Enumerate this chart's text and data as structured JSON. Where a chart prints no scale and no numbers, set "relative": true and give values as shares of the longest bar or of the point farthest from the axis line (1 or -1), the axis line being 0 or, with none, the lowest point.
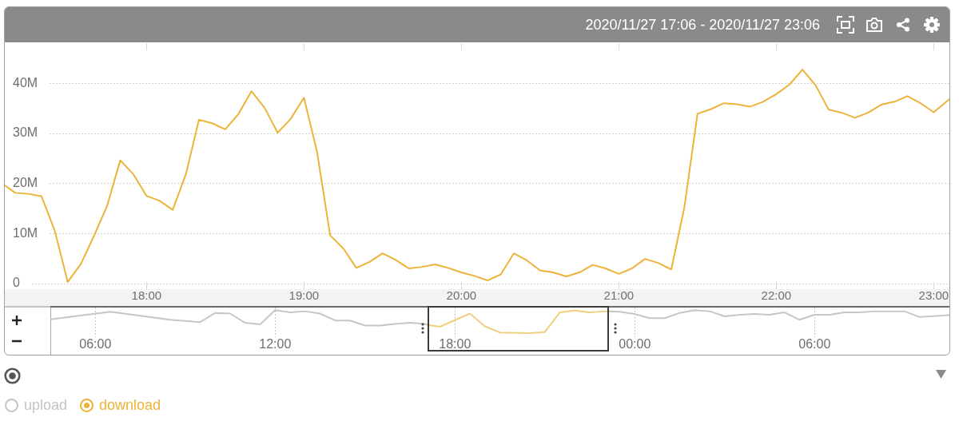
{
  "chart_data": [
    {
      "type": "line",
      "subtitle": "2020/11/27 17:06 - 2020/11/27 23:06",
      "xlim": [
        "2020-11-27T17:06",
        "2020-11-27T23:06"
      ],
      "xticks": [
        {
          "value": "2020-11-27T18:00",
          "label": "18:00"
        },
        {
          "value": "2020-11-27T19:00",
          "label": "19:00"
        },
        {
          "value": "2020-11-27T20:00",
          "label": "20:00"
        },
        {
          "value": "2020-11-27T21:00",
          "label": "21:00"
        },
        {
          "value": "2020-11-27T22:00",
          "label": "22:00"
        },
        {
          "value": "2020-11-27T23:00",
          "label": "23:00"
        }
      ],
      "ylim": [
        -4.5,
        48
      ],
      "yticks": [
        0,
        {
          "value": 10,
          "label": "10M"
        },
        {
          "value": 20,
          "label": "20M"
        },
        {
          "value": 30,
          "label": "30M"
        },
        {
          "value": 40,
          "label": "40M"
        }
      ],
      "grid": "y",
      "legend": "bottom left",
      "x": [
        "2020-11-27T17:06",
        "2020-11-27T17:10",
        "2020-11-27T17:15",
        "2020-11-27T17:20",
        "2020-11-27T17:25",
        "2020-11-27T17:30",
        "2020-11-27T17:35",
        "2020-11-27T17:40",
        "2020-11-27T17:45",
        "2020-11-27T17:50",
        "2020-11-27T17:55",
        "2020-11-27T18:00",
        "2020-11-27T18:05",
        "2020-11-27T18:10",
        "2020-11-27T18:15",
        "2020-11-27T18:20",
        "2020-11-27T18:25",
        "2020-11-27T18:30",
        "2020-11-27T18:35",
        "2020-11-27T18:40",
        "2020-11-27T18:45",
        "2020-11-27T18:50",
        "2020-11-27T18:55",
        "2020-11-27T19:00",
        "2020-11-27T19:05",
        "2020-11-27T19:10",
        "2020-11-27T19:15",
        "2020-11-27T19:20",
        "2020-11-27T19:25",
        "2020-11-27T19:30",
        "2020-11-27T19:35",
        "2020-11-27T19:40",
        "2020-11-27T19:45",
        "2020-11-27T19:50",
        "2020-11-27T19:55",
        "2020-11-27T20:00",
        "2020-11-27T20:05",
        "2020-11-27T20:10",
        "2020-11-27T20:15",
        "2020-11-27T20:20",
        "2020-11-27T20:25",
        "2020-11-27T20:30",
        "2020-11-27T20:35",
        "2020-11-27T20:40",
        "2020-11-27T20:45",
        "2020-11-27T20:50",
        "2020-11-27T20:55",
        "2020-11-27T21:00",
        "2020-11-27T21:05",
        "2020-11-27T21:10",
        "2020-11-27T21:15",
        "2020-11-27T21:20",
        "2020-11-27T21:25",
        "2020-11-27T21:30",
        "2020-11-27T21:35",
        "2020-11-27T21:40",
        "2020-11-27T21:45",
        "2020-11-27T21:50",
        "2020-11-27T21:55",
        "2020-11-27T22:00",
        "2020-11-27T22:05",
        "2020-11-27T22:10",
        "2020-11-27T22:15",
        "2020-11-27T22:20",
        "2020-11-27T22:25",
        "2020-11-27T22:30",
        "2020-11-27T22:35",
        "2020-11-27T22:40",
        "2020-11-27T22:45",
        "2020-11-27T22:50",
        "2020-11-27T22:55",
        "2020-11-27T23:00",
        "2020-11-27T23:06"
      ],
      "series": [
        {
          "name": "upload",
          "color": "#c4c4c4",
          "values": [
            null,
            null,
            null,
            null,
            null,
            null,
            null,
            null,
            null,
            null,
            null,
            null,
            null,
            null,
            null,
            null,
            null,
            null,
            null,
            null,
            null,
            null,
            null,
            null,
            null,
            null,
            null,
            null,
            null,
            null,
            null,
            null,
            null,
            null,
            null,
            null,
            null,
            null,
            null,
            null,
            null,
            null,
            null,
            null,
            null,
            null,
            null,
            null,
            null,
            null,
            null,
            null,
            null,
            null,
            null,
            null,
            null,
            null,
            null,
            null,
            null,
            null,
            null,
            null,
            null,
            null,
            null,
            null,
            null,
            null,
            null,
            null,
            null
          ]
        },
        {
          "name": "download",
          "color": "#ecb339",
          "values": [
            19.6,
            18.1,
            17.9,
            17.4,
            10.6,
            0.3,
            3.9,
            9.5,
            15.5,
            24.6,
            21.8,
            17.5,
            16.5,
            14.7,
            21.8,
            32.7,
            32.0,
            30.8,
            33.8,
            38.4,
            35.1,
            30.1,
            32.9,
            37.1,
            26.3,
            9.6,
            7.0,
            3.1,
            4.3,
            6.0,
            4.7,
            3.0,
            3.3,
            3.8,
            3.1,
            2.2,
            1.5,
            0.6,
            1.8,
            6.0,
            4.6,
            2.6,
            2.2,
            1.4,
            2.2,
            3.7,
            3.0,
            1.9,
            3.0,
            4.9,
            4.1,
            2.8,
            15.2,
            33.9,
            34.8,
            36.0,
            35.8,
            35.3,
            36.3,
            37.8,
            39.7,
            42.7,
            39.6,
            34.7,
            34.1,
            33.1,
            34.1,
            35.7,
            36.3,
            37.4,
            36.0,
            34.2,
            36.8
          ]
        }
      ]
    },
    {
      "type": "line",
      "relative": true,
      "xlim": [
        "2020-11-27T04:30",
        "2020-11-28T10:30"
      ],
      "xticks": [
        {
          "value": "2020-11-27T06:00",
          "label": "06:00"
        },
        {
          "value": "2020-11-27T12:00",
          "label": "12:00"
        },
        {
          "value": "2020-11-27T18:00",
          "label": "18:00"
        },
        {
          "value": "2020-11-28T00:00",
          "label": "00:00"
        },
        {
          "value": "2020-11-28T06:00",
          "label": "06:00"
        }
      ],
      "grid": "x",
      "series": [
        {
          "color": "#c6c6c6",
          "x": [
            "2020-11-27T04:30",
            "2020-11-27T06:30",
            "2020-11-27T08:30",
            "2020-11-27T09:30",
            "2020-11-27T10:00",
            "2020-11-27T10:30",
            "2020-11-27T11:00",
            "2020-11-27T11:30",
            "2020-11-27T12:00",
            "2020-11-27T12:30",
            "2020-11-27T13:00",
            "2020-11-27T13:30",
            "2020-11-27T14:00",
            "2020-11-27T14:30",
            "2020-11-27T15:00",
            "2020-11-27T15:30",
            "2020-11-27T16:00",
            "2020-11-27T16:30",
            "2020-11-27T17:00",
            "2020-11-27T17:06",
            "2020-11-27T20:30",
            "2020-11-27T23:06",
            "2020-11-27T23:30",
            "2020-11-28T00:00",
            "2020-11-28T00:30",
            "2020-11-28T01:00",
            "2020-11-28T01:30",
            "2020-11-28T02:00",
            "2020-11-28T02:30",
            "2020-11-28T03:00",
            "2020-11-28T03:30",
            "2020-11-28T04:00",
            "2020-11-28T04:30",
            "2020-11-28T05:00",
            "2020-11-28T05:30",
            "2020-11-28T06:00",
            "2020-11-28T06:30",
            "2020-11-28T07:00",
            "2020-11-28T07:30",
            "2020-11-28T08:00",
            "2020-11-28T08:30",
            "2020-11-28T09:00",
            "2020-11-28T09:30",
            "2020-11-28T10:30"
          ],
          "values": [
            0.6,
            0.93,
            0.58,
            0.48,
            0.88,
            0.85,
            0.45,
            0.38,
            1,
            0.9,
            0.95,
            0.85,
            0.55,
            0.55,
            0.33,
            0.33,
            0.4,
            0.45,
            0.4,
            0.36,
            null,
            0.95,
            0.93,
            0.83,
            0.65,
            0.65,
            0.88,
            1,
            0.95,
            0.73,
            0.8,
            0.83,
            0.8,
            0.9,
            0.58,
            0.8,
            0.8,
            0.9,
            0.9,
            0.95,
            0.95,
            0.95,
            0.7,
            0.78
          ]
        },
        {
          "color": "#f0cf80",
          "x": [
            "2020-11-27T17:06",
            "2020-11-27T17:30",
            "2020-11-27T18:30",
            "2020-11-27T19:00",
            "2020-11-27T19:30",
            "2020-11-27T20:30",
            "2020-11-27T21:00",
            "2020-11-27T21:30",
            "2020-11-27T22:00",
            "2020-11-27T22:30",
            "2020-11-27T23:00",
            "2020-11-27T23:06"
          ],
          "values": [
            0.36,
            0.28,
            0.85,
            0.3,
            0.03,
            0,
            0.05,
            0.9,
            0.98,
            0.9,
            0.95,
            0.95
          ]
        }
      ]
    }
  ]
}
